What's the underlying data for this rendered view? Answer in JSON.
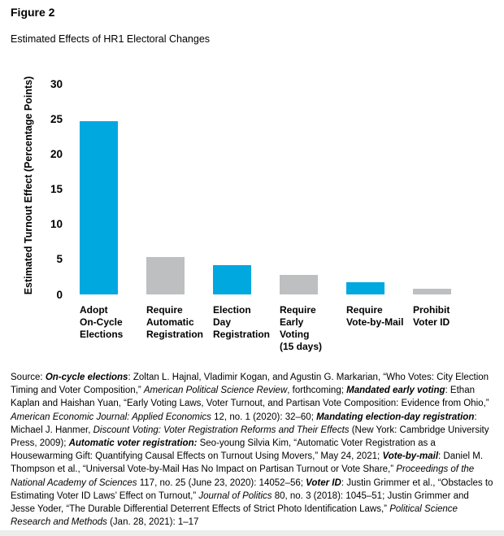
{
  "figure": {
    "label": "Figure 2",
    "title": "Estimated Effects of HR1 Electoral Changes"
  },
  "chart_data": {
    "type": "bar",
    "title": "Estimated Effects of HR1 Electoral Changes",
    "xlabel": "",
    "ylabel": "Estimated Turnout Effect (Percentage Points)",
    "ylim": [
      0,
      30
    ],
    "yticks": [
      0,
      5,
      10,
      15,
      20,
      25,
      30
    ],
    "grid": false,
    "legend": false,
    "categories": [
      "Adopt On-Cycle Elections",
      "Require Automatic Registration",
      "Election Day Registration",
      "Require Early Voting (15 days)",
      "Require Vote-by-Mail",
      "Prohibit Voter ID"
    ],
    "category_lines": [
      [
        "Adopt",
        "On-Cycle",
        "Elections"
      ],
      [
        "Require",
        "Automatic",
        "Registration"
      ],
      [
        "Election",
        "Day",
        "Registration"
      ],
      [
        "Require",
        "Early",
        "Voting",
        "(15 days)"
      ],
      [
        "Require",
        "Vote-by-Mail"
      ],
      [
        "Prohibit",
        "Voter ID"
      ]
    ],
    "values": [
      24.7,
      5.3,
      4.2,
      2.8,
      1.7,
      0.8
    ],
    "bar_colors": [
      "#00A8E0",
      "#BDBFC1",
      "#00A8E0",
      "#BDBFC1",
      "#00A8E0",
      "#BDBFC1"
    ]
  },
  "colors": {
    "accent_blue": "#00A8E0",
    "neutral_gray": "#BDBFC1",
    "text": "#000000"
  },
  "source": {
    "segments": [
      {
        "style": "r",
        "text": "Source: "
      },
      {
        "style": "bi",
        "text": "On-cycle elections"
      },
      {
        "style": "r",
        "text": ": Zoltan L. Hajnal, Vladimir Kogan, and Agustin G. Markarian, “Who Votes: City Election Timing and Voter Composition,” "
      },
      {
        "style": "i",
        "text": "American Political Science Review"
      },
      {
        "style": "r",
        "text": ", forthcoming; "
      },
      {
        "style": "bi",
        "text": "Mandated early voting"
      },
      {
        "style": "r",
        "text": ": Ethan Kaplan and Haishan Yuan, “Early Voting Laws, Voter Turnout, and Partisan Vote Composition: Evidence from Ohio,” "
      },
      {
        "style": "i",
        "text": "American Economic Journal: Applied Economics"
      },
      {
        "style": "r",
        "text": " 12, no. 1 (2020): 32–60; "
      },
      {
        "style": "bi",
        "text": "Mandating election-day registration"
      },
      {
        "style": "r",
        "text": ": Michael J. Hanmer, "
      },
      {
        "style": "i",
        "text": "Discount Voting: Voter Registration Reforms and Their Effects"
      },
      {
        "style": "r",
        "text": " (New York: Cambridge University Press, 2009); "
      },
      {
        "style": "bi",
        "text": "Automatic voter registration:"
      },
      {
        "style": "r",
        "text": " Seo-young Silvia Kim, “Automatic Voter Registration as a Housewarming Gift: Quantifying Causal Effects on Turnout Using Movers,” May 24, 2021; "
      },
      {
        "style": "bi",
        "text": "Vote-by-mail"
      },
      {
        "style": "r",
        "text": ": Daniel M. Thompson et al., “Universal Vote-by-Mail Has No Impact on Partisan Turnout or Vote Share,” "
      },
      {
        "style": "i",
        "text": "Proceedings of the National Academy of Sciences"
      },
      {
        "style": "r",
        "text": " 117, no. 25 (June 23, 2020): 14052–56; "
      },
      {
        "style": "bi",
        "text": "Voter ID"
      },
      {
        "style": "r",
        "text": ": Justin Grimmer et al., “Obstacles to Estimating Voter ID Laws’ Effect on Turnout,” "
      },
      {
        "style": "i",
        "text": "Journal of Politics"
      },
      {
        "style": "r",
        "text": " 80, no. 3 (2018): 1045–51; Justin Grimmer and Jesse Yoder, “The Durable Differential Deterrent Effects of Strict Photo Identification Laws,” "
      },
      {
        "style": "i",
        "text": "Political Science Research and Methods"
      },
      {
        "style": "r",
        "text": " (Jan. 28, 2021): 1–17"
      }
    ]
  }
}
